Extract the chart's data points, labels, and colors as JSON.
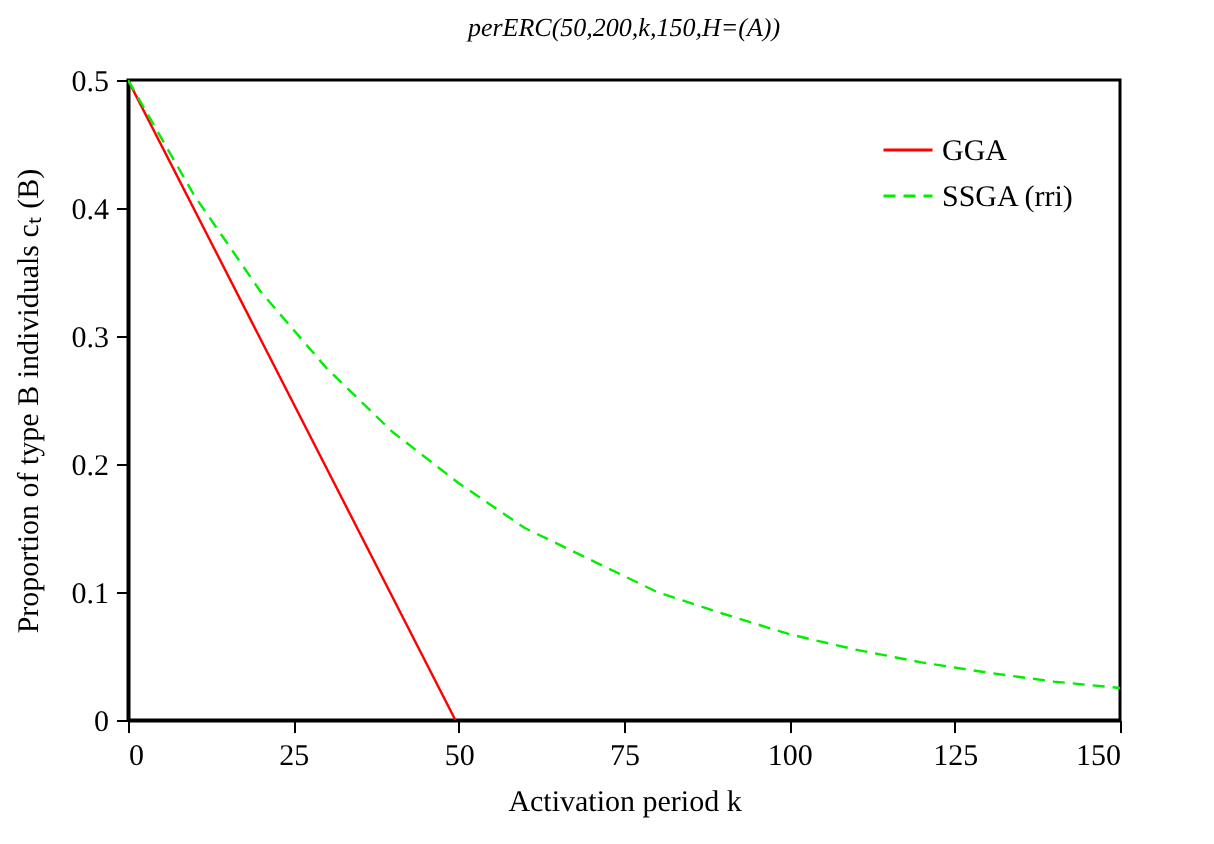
{
  "chart_data": {
    "type": "line",
    "title": "perERC(50,200,k,150,H=(A))",
    "xlabel": "Activation period k",
    "ylabel": "Proportion of type B individuals cₜ (B)",
    "xlim": [
      0,
      150
    ],
    "xticks": [
      0,
      25,
      50,
      75,
      100,
      125,
      150
    ],
    "ylim": [
      0,
      0.5
    ],
    "yticks": [
      0,
      0.1,
      0.2,
      0.3,
      0.4,
      0.5
    ],
    "grid": false,
    "legend": "top right",
    "marker": "none",
    "series": [
      {
        "name": "GGA",
        "color": "#ff0000",
        "line_style": "solid",
        "x": [
          0,
          49.5
        ],
        "values": [
          0.5,
          0
        ]
      },
      {
        "name": "SSGA (rri)",
        "color": "#00ee00",
        "line_style": "dashed",
        "x": [
          0,
          10,
          20,
          30,
          40,
          50,
          60,
          70,
          80,
          90,
          100,
          110,
          120,
          130,
          140,
          150
        ],
        "values": [
          0.5,
          0.41,
          0.335,
          0.275,
          0.225,
          0.185,
          0.15,
          0.125,
          0.1,
          0.083,
          0.067,
          0.055,
          0.045,
          0.037,
          0.03,
          0.025
        ]
      }
    ]
  }
}
